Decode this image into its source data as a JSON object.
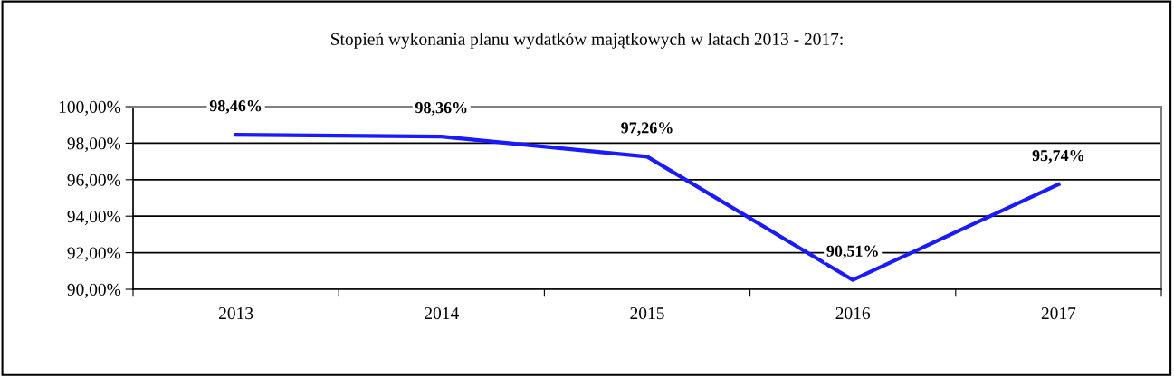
{
  "chart_data": {
    "type": "line",
    "title": "Stopień wykonania planu wydatków majątkowych w latach 2013 - 2017:",
    "categories": [
      "2013",
      "2014",
      "2015",
      "2016",
      "2017"
    ],
    "series": [
      {
        "color": "#1a1aff",
        "values": [
          98.46,
          98.36,
          97.26,
          90.51,
          95.74
        ],
        "value_labels": [
          "98,46%",
          "98,36%",
          "97,26%",
          "90,51%",
          "95,74%"
        ]
      }
    ],
    "ylim": [
      90,
      100
    ],
    "yticks": [
      {
        "value": 90,
        "label": "90,00%"
      },
      {
        "value": 92,
        "label": "92,00%"
      },
      {
        "value": 94,
        "label": "94,00%"
      },
      {
        "value": 96,
        "label": "96,00%"
      },
      {
        "value": 98,
        "label": "98,00%"
      },
      {
        "value": 100,
        "label": "100,00%"
      }
    ],
    "grid": "y",
    "legend": false,
    "marker": "none",
    "line_style": "solid"
  }
}
